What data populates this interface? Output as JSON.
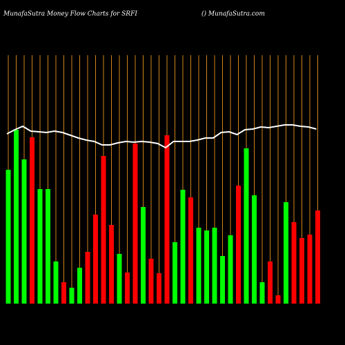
{
  "chart_data": {
    "type": "bar",
    "title": "MunafaSutra  Money Flow  Charts for SRFI",
    "subtitle": "() MunafaSutra.com",
    "values": [
      194,
      252,
      209,
      241,
      166,
      166,
      61,
      31,
      23,
      52,
      75,
      129,
      214,
      114,
      72,
      45,
      232,
      140,
      65,
      44,
      244,
      89,
      165,
      154,
      110,
      106,
      110,
      69,
      99,
      171,
      225,
      157,
      31,
      61,
      12,
      147,
      118,
      95,
      100,
      135
    ],
    "colors": [
      "#00ff00",
      "#00ff00",
      "#00ff00",
      "#ff0000",
      "#00ff00",
      "#00ff00",
      "#00ff00",
      "#ff0000",
      "#00ff00",
      "#00ff00",
      "#ff0000",
      "#ff0000",
      "#ff0000",
      "#ff0000",
      "#00ff00",
      "#ff0000",
      "#ff0000",
      "#00ff00",
      "#ff0000",
      "#ff0000",
      "#ff0000",
      "#00ff00",
      "#00ff00",
      "#ff0000",
      "#00ff00",
      "#00ff00",
      "#00ff00",
      "#00ff00",
      "#00ff00",
      "#ff0000",
      "#00ff00",
      "#00ff00",
      "#00ff00",
      "#ff0000",
      "#ff0000",
      "#00ff00",
      "#ff0000",
      "#ff0000",
      "#ff0000",
      "#ff0000"
    ],
    "line": [
      246,
      252,
      257,
      250,
      249,
      248,
      250,
      248,
      244,
      240,
      237,
      235,
      230,
      230,
      233,
      235,
      234,
      235,
      234,
      232,
      226,
      235,
      235,
      235,
      237,
      240,
      240,
      248,
      249,
      245,
      252,
      253,
      256,
      255,
      257,
      259,
      259,
      257,
      256,
      253
    ],
    "line_color": "#ffffff",
    "grid_color": "#d2861a",
    "ylim": [
      0,
      360
    ]
  }
}
